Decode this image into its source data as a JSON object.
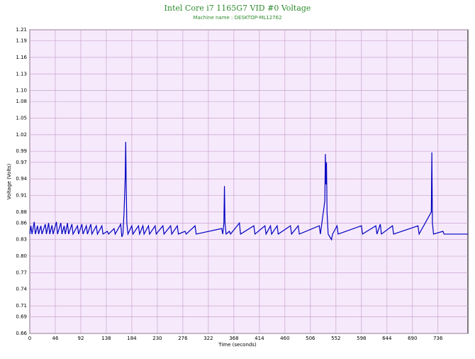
{
  "chart_data": {
    "type": "line",
    "title": "Intel Core i7 1165G7 VID #0 Voltage",
    "subtitle": "Machine name : DESKTOP-ML12762",
    "x_label": "Time (seconds)",
    "y_label": "Voltage (Volts)",
    "xlim": [
      0,
      790
    ],
    "ylim": [
      0.66,
      1.21
    ],
    "xticks": [
      0,
      46,
      92,
      138,
      184,
      230,
      276,
      322,
      368,
      414,
      460,
      506,
      552,
      598,
      644,
      690,
      736
    ],
    "yticks": [
      0.66,
      0.69,
      0.71,
      0.74,
      0.77,
      {
        "value": 0.8,
        "label": "0.80"
      },
      0.83,
      0.86,
      0.88,
      0.91,
      0.94,
      0.97,
      0.99,
      1.02,
      1.05,
      1.08,
      {
        "value": 1.1,
        "label": "1.10"
      },
      1.13,
      1.16,
      1.19,
      1.21
    ],
    "grid": true,
    "x": [
      0,
      2,
      4,
      8,
      10,
      14,
      16,
      20,
      22,
      28,
      30,
      34,
      36,
      40,
      42,
      48,
      50,
      56,
      58,
      62,
      64,
      68,
      70,
      76,
      78,
      86,
      88,
      94,
      96,
      102,
      104,
      110,
      112,
      120,
      122,
      130,
      132,
      140,
      142,
      152,
      154,
      164,
      166,
      168,
      170,
      172,
      173,
      174,
      175,
      177,
      184,
      186,
      196,
      198,
      204,
      206,
      214,
      216,
      226,
      228,
      240,
      242,
      254,
      256,
      266,
      268,
      280,
      282,
      298,
      300,
      346,
      348,
      350,
      351,
      352,
      354,
      360,
      362,
      378,
      380,
      404,
      406,
      424,
      426,
      434,
      436,
      446,
      448,
      470,
      472,
      484,
      486,
      522,
      524,
      532,
      533,
      534,
      535,
      536,
      538,
      544,
      546,
      554,
      556,
      598,
      600,
      624,
      626,
      632,
      634,
      654,
      656,
      700,
      702,
      724,
      725,
      726,
      728,
      745,
      747,
      790
    ],
    "series": [
      {
        "name": "VID #0",
        "color": "#0000c0",
        "values": [
          0.84,
          0.855,
          0.84,
          0.862,
          0.84,
          0.855,
          0.84,
          0.855,
          0.84,
          0.858,
          0.84,
          0.86,
          0.84,
          0.856,
          0.84,
          0.862,
          0.84,
          0.86,
          0.84,
          0.855,
          0.84,
          0.86,
          0.84,
          0.858,
          0.84,
          0.855,
          0.84,
          0.858,
          0.84,
          0.855,
          0.84,
          0.858,
          0.84,
          0.855,
          0.84,
          0.855,
          0.84,
          0.845,
          0.84,
          0.85,
          0.84,
          0.858,
          0.835,
          0.84,
          0.88,
          0.94,
          1.007,
          0.92,
          0.86,
          0.84,
          0.855,
          0.84,
          0.855,
          0.84,
          0.855,
          0.84,
          0.855,
          0.84,
          0.855,
          0.84,
          0.855,
          0.84,
          0.855,
          0.84,
          0.855,
          0.84,
          0.845,
          0.84,
          0.855,
          0.84,
          0.85,
          0.84,
          0.86,
          0.927,
          0.86,
          0.84,
          0.845,
          0.84,
          0.86,
          0.84,
          0.855,
          0.84,
          0.855,
          0.84,
          0.855,
          0.84,
          0.855,
          0.84,
          0.855,
          0.84,
          0.855,
          0.84,
          0.855,
          0.84,
          0.9,
          0.985,
          0.93,
          0.97,
          0.88,
          0.84,
          0.83,
          0.84,
          0.855,
          0.84,
          0.855,
          0.84,
          0.855,
          0.84,
          0.858,
          0.84,
          0.855,
          0.84,
          0.855,
          0.84,
          0.88,
          0.988,
          0.86,
          0.84,
          0.845,
          0.84,
          0.84
        ]
      }
    ]
  }
}
